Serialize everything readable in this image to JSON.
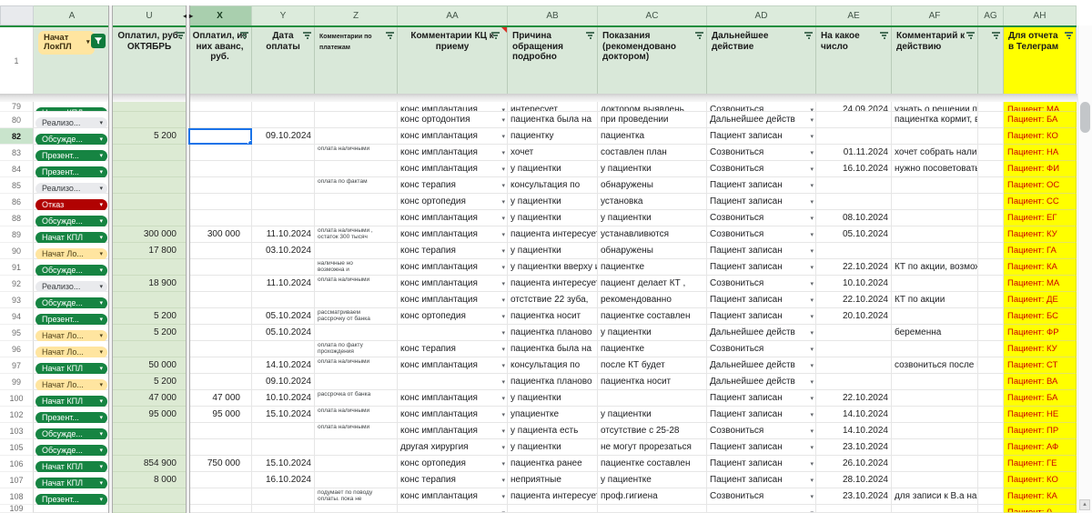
{
  "header": {
    "row_number": "1",
    "a_chip": "Начат ЛокПЛ",
    "cells": {
      "U": "Оплатил, руб. ОКТЯБРЬ",
      "X": "Оплатил, из них аванс, руб.",
      "Y": "Дата оплаты",
      "Z": "Комментарии по платежам",
      "AA": "Комментарии КЦ к приему",
      "AB": "Причина обращения подробно",
      "AC": "Показания (рекомендовано доктором)",
      "AD": "Дальнейшее действие",
      "AE": "На какое число",
      "AF": "Комментарий к действию",
      "AG": "",
      "AH": "Для отчета в Телеграм"
    }
  },
  "columns": [
    {
      "key": "A",
      "letter": "A"
    },
    {
      "key": "U",
      "letter": "U",
      "hidden_marker_right": true,
      "center": true
    },
    {
      "key": "X",
      "letter": "X",
      "hidden_marker_left": true,
      "selected": true,
      "center": true
    },
    {
      "key": "Y",
      "letter": "Y",
      "center": true
    },
    {
      "key": "Z",
      "letter": "Z"
    },
    {
      "key": "AA",
      "letter": "AA",
      "center": true,
      "comment": true
    },
    {
      "key": "AB",
      "letter": "AB"
    },
    {
      "key": "AC",
      "letter": "AC"
    },
    {
      "key": "AD",
      "letter": "AD"
    },
    {
      "key": "AE",
      "letter": "AE"
    },
    {
      "key": "AF",
      "letter": "AF"
    },
    {
      "key": "AG",
      "letter": "AG"
    },
    {
      "key": "AH",
      "letter": "AH"
    }
  ],
  "selection": {
    "row": "82",
    "column": "X"
  },
  "icons": {
    "dropdown_arrow": "▾",
    "hidden_left": "◂",
    "hidden_right": "▸",
    "scroll_hint": "▴"
  },
  "colors": {
    "chip_green": "#168442",
    "chip_red": "#b10202",
    "chip_yellow": "#ffe5a0",
    "chip_gray": "#e9eaed",
    "header_green": "#d9e8d9",
    "money_column_green": "#dcead3",
    "highlight_yellow": "#ffff00",
    "report_text_red": "#cc0000",
    "selection_blue": "#1a73e8"
  },
  "rows": [
    {
      "n": "79",
      "clip": "top",
      "chip": {
        "label": "Начат КПЛ",
        "color": "green"
      },
      "AA": "конс имплантация",
      "AB": "интересует",
      "AC": "доктором выявлень",
      "AD": "Созвониться",
      "AE": "24.09.2024",
      "AF": "узнать о решении по",
      "AH": "Пациент: МА"
    },
    {
      "n": "80",
      "chip": {
        "label": "Реализо...",
        "color": "gray"
      },
      "AA": "конс ортодонтия",
      "AB": "пациентка была на",
      "AC": "при проведении",
      "AD": "Дальнейшее действ",
      "AF": "пациентка кормит, вс",
      "AH": "Пациент: БА"
    },
    {
      "n": "82",
      "selected": true,
      "chip": {
        "label": "Обсужде...",
        "color": "green"
      },
      "U": "5 200",
      "Y": "09.10.2024",
      "AA": "конс имплантация",
      "AB": "пациентку",
      "AC": "пациентка",
      "AD": "Пациент записан",
      "AH": "Пациент: КО"
    },
    {
      "n": "83",
      "chip": {
        "label": "Презент...",
        "color": "green"
      },
      "Z": "оплата наличными",
      "AA": "конс имплантация",
      "AB": "хочет",
      "AC": "составлен план",
      "AD": "Созвониться",
      "AE": "01.11.2024",
      "AF": "хочет собрать налич",
      "AH": "Пациент: НА"
    },
    {
      "n": "84",
      "chip": {
        "label": "Презент...",
        "color": "green"
      },
      "AA": "конс имплантация",
      "AB": "у пациентки",
      "AC": "у пациентки",
      "AD": "Созвониться",
      "AE": "16.10.2024",
      "AF": "нужно посоветоватьс",
      "AH": "Пациент: ФИ"
    },
    {
      "n": "85",
      "chip": {
        "label": "Реализо...",
        "color": "gray"
      },
      "Z": "оплата по фактам",
      "AA": "конс терапия",
      "AB": "консультация по",
      "AC": "обнаружены",
      "AD": "Пациент записан",
      "AH": "Пациент: ОС"
    },
    {
      "n": "86",
      "chip": {
        "label": "Отказ",
        "color": "red"
      },
      "AA": "конс ортопедия",
      "AB": "у пациентки",
      "AC": "установка",
      "AD": "Пациент записан",
      "AH": "Пациент: СС"
    },
    {
      "n": "88",
      "chip": {
        "label": "Обсужде...",
        "color": "green"
      },
      "AA": "конс имплантация",
      "AB": "у пациентки",
      "AC": "у пациентки",
      "AD": "Созвониться",
      "AE": "08.10.2024",
      "AH": "Пациент: ЕГ"
    },
    {
      "n": "89",
      "chip": {
        "label": "Начат КПЛ",
        "color": "green"
      },
      "U": "300 000",
      "X": "300 000",
      "Y": "11.10.2024",
      "Z": "оплата наличными ,\nостаток 300 тысяч",
      "AA": "конс имплантация",
      "AB": "пациента интересует",
      "AC": "устанавливются",
      "AD": "Созвониться",
      "AE": "05.10.2024",
      "AH": "Пациент: КУ"
    },
    {
      "n": "90",
      "chip": {
        "label": "Начат Ло...",
        "color": "yellow"
      },
      "U": "17 800",
      "Y": "03.10.2024",
      "AA": "конс терапия",
      "AB": "у пациентки",
      "AC": "обнаружены",
      "AD": "Пациент записан",
      "AH": "Пациент: ГА"
    },
    {
      "n": "91",
      "chip": {
        "label": "Обсужде...",
        "color": "green"
      },
      "Z": "наличные но\nвозможна и",
      "AA": "конс имплантация",
      "AB": "у пациентки вверху и",
      "AC": "пациентке",
      "AD": "Пациент записан",
      "AE": "22.10.2024",
      "AF": "КТ по акции, возмож",
      "AH": "Пациент: КА"
    },
    {
      "n": "92",
      "chip": {
        "label": "Реализо...",
        "color": "gray"
      },
      "U": "18 900",
      "Y": "11.10.2024",
      "Z": "оплата наличными",
      "AA": "конс имплантация",
      "AB": "пациента интересует",
      "AC": "пациент делает КТ ,",
      "AD": "Созвониться",
      "AE": "10.10.2024",
      "AH": "Пациент: МА"
    },
    {
      "n": "93",
      "chip": {
        "label": "Обсужде...",
        "color": "green"
      },
      "AA": "конс имплантация",
      "AB": "отстствие 22 зуба,",
      "AC": "рекомендованно",
      "AD": "Пациент записан",
      "AE": "22.10.2024",
      "AF": "КТ по акции",
      "AH": "Пациент: ДЕ"
    },
    {
      "n": "94",
      "chip": {
        "label": "Презент...",
        "color": "green"
      },
      "U": "5 200",
      "Y": "05.10.2024",
      "Z": "рассматриваем\nрассрочку от банка",
      "AA": "конс ортопедия",
      "AB": "пациентка носит",
      "AC": "пациентке составлен",
      "AD": "Пациент записан",
      "AE": "20.10.2024",
      "AH": "Пациент: БС"
    },
    {
      "n": "95",
      "chip": {
        "label": "Начат Ло...",
        "color": "yellow"
      },
      "U": "5 200",
      "Y": "05.10.2024",
      "AB": "пациентка планово",
      "AC": "у пациентки",
      "AD": "Дальнейшее действ",
      "AF": "беременна",
      "AH": "Пациент: ФР"
    },
    {
      "n": "96",
      "chip": {
        "label": "Начат Ло...",
        "color": "yellow"
      },
      "Z": "оплата по факту\nпрохождения",
      "AA": "конс терапия",
      "AB": "пациентка была на",
      "AC": "пациентке",
      "AD": "Созвониться",
      "AH": "Пациент: КУ"
    },
    {
      "n": "97",
      "chip": {
        "label": "Начат КПЛ",
        "color": "green"
      },
      "U": "50 000",
      "Y": "14.10.2024",
      "Z": "оплата наличными",
      "AA": "конс имплантация",
      "AB": "консультация по",
      "AC": "после КТ будет",
      "AD": "Дальнейшее действ",
      "AF": "созвониться после К",
      "AH": "Пациент: СТ"
    },
    {
      "n": "99",
      "chip": {
        "label": "Начат Ло...",
        "color": "yellow"
      },
      "U": "5 200",
      "Y": "09.10.2024",
      "AB": "пациентка планово",
      "AC": "пациентка носит",
      "AD": "Дальнейшее действ",
      "AH": "Пациент: ВА"
    },
    {
      "n": "100",
      "chip": {
        "label": "Начат КПЛ",
        "color": "green"
      },
      "U": "47 000",
      "X": "47 000",
      "Y": "10.10.2024",
      "Z": "рассрочка от банка",
      "AA": "конс имплантация",
      "AB": "у пациентки",
      "AD": "Пациент записан",
      "AE": "22.10.2024",
      "AH": "Пациент: БА"
    },
    {
      "n": "102",
      "chip": {
        "label": "Презент...",
        "color": "green"
      },
      "U": "95 000",
      "X": "95 000",
      "Y": "15.10.2024",
      "Z": "оплата наличными",
      "AA": "конс имплантация",
      "AB": "упациентке",
      "AC": "у пациентки",
      "AD": "Пациент записан",
      "AE": "14.10.2024",
      "AH": "Пациент: НЕ"
    },
    {
      "n": "103",
      "chip": {
        "label": "Обсужде...",
        "color": "green"
      },
      "Z": "оплата наличными",
      "AA": "конс имплантация",
      "AB": "у пациента есть",
      "AC": "отсутствие с 25-28",
      "AD": "Созвониться",
      "AE": "14.10.2024",
      "AH": "Пациент: ПР"
    },
    {
      "n": "105",
      "chip": {
        "label": "Обсужде...",
        "color": "green"
      },
      "AA": "другая хирургия",
      "AB": "у пациентки",
      "AC": "не могут прорезаться",
      "AD": "Пациент записан",
      "AE": "23.10.2024",
      "AH": "Пациент: АФ"
    },
    {
      "n": "106",
      "chip": {
        "label": "Начат КПЛ",
        "color": "green"
      },
      "U": "854 900",
      "X": "750 000",
      "Y": "15.10.2024",
      "AA": "конс ортопедия",
      "AB": "пациентка ранее",
      "AC": "пациентке составлен",
      "AD": "Пациент записан",
      "AE": "26.10.2024",
      "AH": "Пациент: ГЕ"
    },
    {
      "n": "107",
      "chip": {
        "label": "Начат КПЛ",
        "color": "green"
      },
      "U": "8 000",
      "Y": "16.10.2024",
      "AA": "конс терапия",
      "AB": "неприятные",
      "AC": "у пациентке",
      "AD": "Пациент записан",
      "AE": "28.10.2024",
      "AH": "Пациент: КО"
    },
    {
      "n": "108",
      "chip": {
        "label": "Презент...",
        "color": "green"
      },
      "Z": "подумает по поводу\nоплаты. пока не",
      "AA": "конс имплантация",
      "AB": "пациента интересует",
      "AC": "проф.гигиена",
      "AD": "Созвониться",
      "AE": "23.10.2024",
      "AF": "для записи к В.а на к",
      "AH": "Пациент: КА"
    },
    {
      "n": "109",
      "clip": "bottom",
      "chip": {
        "label": "",
        "color": "empty"
      },
      "AH": "Пациент: ()"
    }
  ]
}
